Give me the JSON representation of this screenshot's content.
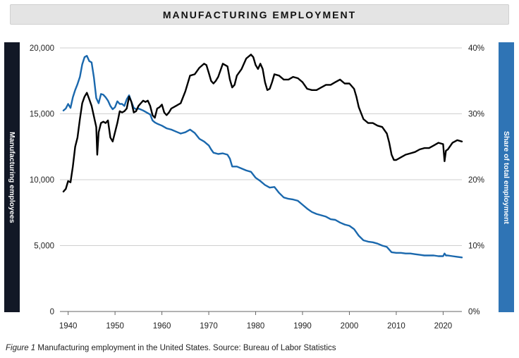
{
  "chart_data": {
    "type": "line",
    "title": "MANUFACTURING EMPLOYMENT",
    "ylabel_left": "Manufacturing employees",
    "ylabel_right": "Share of total employment",
    "xlim": [
      1939,
      2024
    ],
    "ylim_left": [
      0,
      20000
    ],
    "ylim_right": [
      0,
      40
    ],
    "grid": true,
    "xticks": [
      "1940",
      "1950",
      "1960",
      "1970",
      "1980",
      "1990",
      "2000",
      "2010",
      "2020"
    ],
    "xtick_values": [
      1940,
      1950,
      1960,
      1970,
      1980,
      1990,
      2000,
      2010,
      2020
    ],
    "yticks_left": [
      "0",
      "5,000",
      "10,000",
      "15,000",
      "20,000"
    ],
    "yticks_left_values": [
      0,
      5000,
      10000,
      15000,
      20000
    ],
    "yticks_right": [
      "0%",
      "10%",
      "20%",
      "30%",
      "40%"
    ],
    "yticks_right_values": [
      0,
      10,
      20,
      30,
      40
    ],
    "series": [
      {
        "name": "Manufacturing employees",
        "axis": "left",
        "color": "#000000",
        "x": [
          1939.0,
          1939.5,
          1940.0,
          1940.5,
          1941.0,
          1941.5,
          1942.0,
          1942.5,
          1943.0,
          1943.5,
          1944.0,
          1944.5,
          1945.0,
          1945.5,
          1946.0,
          1946.2,
          1946.5,
          1947.0,
          1947.5,
          1948.0,
          1948.5,
          1949.0,
          1949.5,
          1950.0,
          1950.5,
          1951.0,
          1951.5,
          1952.0,
          1952.5,
          1953.0,
          1953.5,
          1954.0,
          1954.5,
          1955.0,
          1955.5,
          1956.0,
          1956.5,
          1957.0,
          1957.5,
          1958.0,
          1958.5,
          1959.0,
          1959.5,
          1960.0,
          1960.5,
          1961.0,
          1961.5,
          1962.0,
          1963.0,
          1964.0,
          1965.0,
          1966.0,
          1967.0,
          1968.0,
          1969.0,
          1969.5,
          1970.0,
          1970.5,
          1971.0,
          1971.5,
          1972.0,
          1973.0,
          1973.5,
          1974.0,
          1974.5,
          1975.0,
          1975.5,
          1976.0,
          1977.0,
          1978.0,
          1979.0,
          1979.5,
          1980.0,
          1980.5,
          1981.0,
          1981.5,
          1982.0,
          1982.5,
          1983.0,
          1983.5,
          1984.0,
          1985.0,
          1986.0,
          1987.0,
          1988.0,
          1989.0,
          1990.0,
          1991.0,
          1992.0,
          1993.0,
          1994.0,
          1995.0,
          1996.0,
          1997.0,
          1998.0,
          1999.0,
          2000.0,
          2001.0,
          2001.5,
          2002.0,
          2003.0,
          2004.0,
          2005.0,
          2006.0,
          2007.0,
          2008.0,
          2008.5,
          2009.0,
          2009.5,
          2010.0,
          2011.0,
          2012.0,
          2013.0,
          2014.0,
          2015.0,
          2016.0,
          2017.0,
          2018.0,
          2019.0,
          2020.0,
          2020.3,
          2020.6,
          2021.0,
          2022.0,
          2023.0,
          2024.0
        ],
        "values": [
          9100,
          9300,
          9900,
          9800,
          11000,
          12500,
          13200,
          14600,
          15800,
          16300,
          16600,
          16100,
          15600,
          14800,
          14000,
          11900,
          13600,
          14300,
          14400,
          14300,
          14500,
          13200,
          12900,
          13600,
          14300,
          15200,
          15100,
          15200,
          15400,
          16300,
          15900,
          15100,
          15200,
          15600,
          15800,
          16000,
          15900,
          16000,
          15600,
          14900,
          14700,
          15400,
          15500,
          15700,
          15100,
          14900,
          15100,
          15400,
          15600,
          15800,
          16700,
          17900,
          18000,
          18500,
          18800,
          18700,
          18100,
          17500,
          17300,
          17500,
          17800,
          18800,
          18700,
          18600,
          17600,
          17000,
          17200,
          17900,
          18400,
          19200,
          19500,
          19300,
          18700,
          18400,
          18800,
          18400,
          17400,
          16800,
          16900,
          17400,
          18000,
          17900,
          17600,
          17600,
          17800,
          17700,
          17400,
          16900,
          16800,
          16800,
          17000,
          17200,
          17200,
          17400,
          17600,
          17300,
          17300,
          16900,
          16300,
          15500,
          14600,
          14300,
          14300,
          14100,
          14000,
          13500,
          12800,
          11900,
          11500,
          11500,
          11700,
          11900,
          12000,
          12100,
          12300,
          12400,
          12400,
          12600,
          12800,
          12700,
          11400,
          12200,
          12300,
          12800,
          13000,
          12900
        ]
      },
      {
        "name": "Share of total employment",
        "axis": "right",
        "color": "#1a68ad",
        "x": [
          1939.0,
          1939.5,
          1940.0,
          1940.5,
          1941.0,
          1941.5,
          1942.0,
          1942.5,
          1943.0,
          1943.5,
          1944.0,
          1944.5,
          1945.0,
          1945.5,
          1946.0,
          1946.5,
          1947.0,
          1947.5,
          1948.0,
          1948.5,
          1949.0,
          1949.5,
          1950.0,
          1950.5,
          1951.0,
          1951.5,
          1952.0,
          1952.5,
          1953.0,
          1953.5,
          1954.0,
          1954.5,
          1955.0,
          1956.0,
          1957.0,
          1957.5,
          1958.0,
          1958.5,
          1959.0,
          1960.0,
          1961.0,
          1962.0,
          1963.0,
          1964.0,
          1965.0,
          1966.0,
          1967.0,
          1968.0,
          1969.0,
          1970.0,
          1970.5,
          1971.0,
          1972.0,
          1973.0,
          1974.0,
          1974.5,
          1975.0,
          1976.0,
          1977.0,
          1978.0,
          1979.0,
          1980.0,
          1981.0,
          1982.0,
          1983.0,
          1984.0,
          1985.0,
          1986.0,
          1987.0,
          1988.0,
          1989.0,
          1990.0,
          1991.0,
          1992.0,
          1993.0,
          1994.0,
          1995.0,
          1996.0,
          1997.0,
          1998.0,
          1999.0,
          2000.0,
          2001.0,
          2002.0,
          2003.0,
          2004.0,
          2005.0,
          2006.0,
          2007.0,
          2008.0,
          2009.0,
          2010.0,
          2011.0,
          2012.0,
          2013.0,
          2014.0,
          2015.0,
          2016.0,
          2017.0,
          2018.0,
          2019.0,
          2020.0,
          2020.3,
          2020.6,
          2021.0,
          2022.0,
          2023.0,
          2024.0
        ],
        "values": [
          30.5,
          30.8,
          31.5,
          30.9,
          32.5,
          33.6,
          34.5,
          35.6,
          37.5,
          38.6,
          38.8,
          38.0,
          37.8,
          35.5,
          32.4,
          31.6,
          33.0,
          32.9,
          32.5,
          32.0,
          31.2,
          30.7,
          31.0,
          31.9,
          31.5,
          31.5,
          31.2,
          32.2,
          32.8,
          31.8,
          30.9,
          30.7,
          30.8,
          30.5,
          30.1,
          29.9,
          29.0,
          28.7,
          28.5,
          28.2,
          27.8,
          27.6,
          27.3,
          27.0,
          27.2,
          27.6,
          27.1,
          26.2,
          25.8,
          25.2,
          24.6,
          24.1,
          23.9,
          24.0,
          23.8,
          23.2,
          22.0,
          22.0,
          21.7,
          21.4,
          21.2,
          20.3,
          19.8,
          19.2,
          18.8,
          18.9,
          18.0,
          17.3,
          17.1,
          17.0,
          16.8,
          16.2,
          15.6,
          15.1,
          14.8,
          14.6,
          14.4,
          14.0,
          13.9,
          13.5,
          13.2,
          13.0,
          12.5,
          11.5,
          10.8,
          10.6,
          10.5,
          10.3,
          10.0,
          9.8,
          9.0,
          8.9,
          8.9,
          8.8,
          8.8,
          8.7,
          8.6,
          8.5,
          8.5,
          8.5,
          8.4,
          8.4,
          8.8,
          8.5,
          8.5,
          8.4,
          8.3,
          8.2
        ]
      }
    ]
  },
  "caption": {
    "figure_label": "Figure 1",
    "text": " Manufacturing employment in the United States. Source: Bureau of Labor Statistics"
  }
}
